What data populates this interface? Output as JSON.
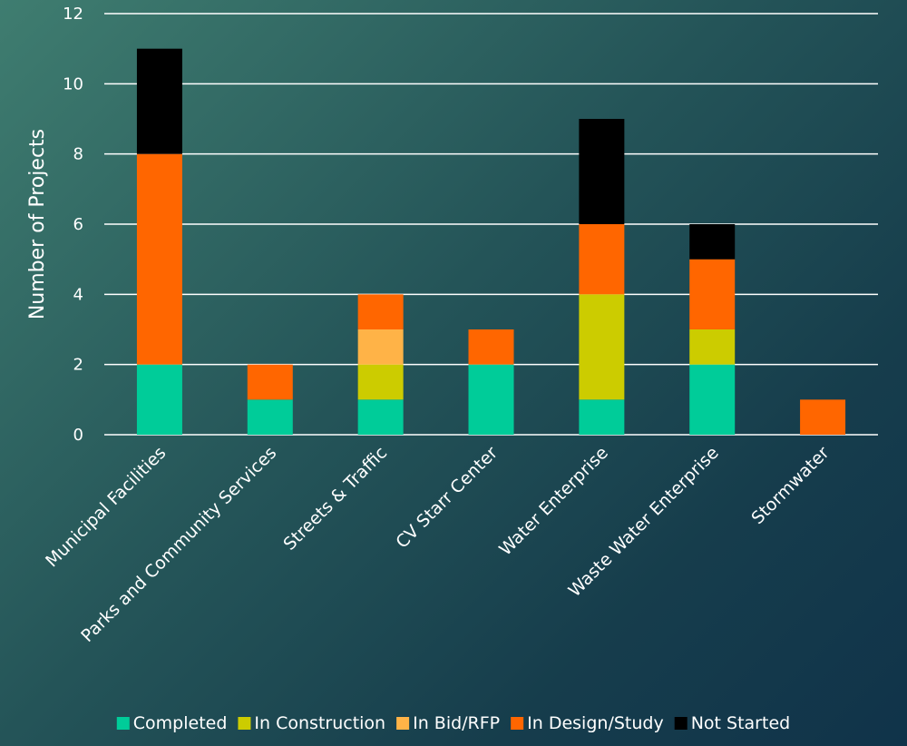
{
  "chart_data": {
    "type": "bar",
    "stacked": true,
    "categories": [
      "Municipal Facilities",
      "Parks and Community Services",
      "Streets & Traffic",
      "CV Starr Center",
      "Water Enterprise",
      "Waste Water Enterprise",
      "Stormwater"
    ],
    "series": [
      {
        "name": "Completed",
        "color": "#00cc99",
        "values": [
          2,
          1,
          1,
          2,
          1,
          2,
          0
        ]
      },
      {
        "name": "In Construction",
        "color": "#cccc00",
        "values": [
          0,
          0,
          1,
          0,
          3,
          1,
          0
        ]
      },
      {
        "name": "In Bid/RFP",
        "color": "#ffb347",
        "values": [
          0,
          0,
          1,
          0,
          0,
          0,
          0
        ]
      },
      {
        "name": "In Design/Study",
        "color": "#ff6600",
        "values": [
          6,
          1,
          1,
          1,
          2,
          2,
          1
        ]
      },
      {
        "name": "Not Started",
        "color": "#000000",
        "values": [
          3,
          0,
          0,
          0,
          3,
          1,
          0
        ]
      }
    ],
    "title": "",
    "xlabel": "",
    "ylabel": "Number of Projects",
    "ylim": [
      0,
      12
    ],
    "yticks": [
      0,
      2,
      4,
      6,
      8,
      10,
      12
    ],
    "grid": true,
    "legend_position": "bottom"
  }
}
